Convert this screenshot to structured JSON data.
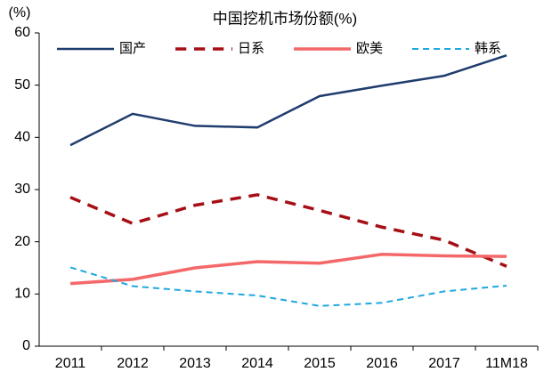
{
  "chart_data": {
    "type": "line",
    "title": "中国挖机市场份额(%)",
    "y_unit": "(%)",
    "categories": [
      "2011",
      "2012",
      "2013",
      "2014",
      "2015",
      "2016",
      "2017",
      "11M18"
    ],
    "series": [
      {
        "name": "国产",
        "color": "#1f3c6e",
        "dash": false,
        "width": 2.5,
        "values": [
          38.5,
          44.5,
          42.2,
          41.9,
          47.9,
          49.9,
          51.8,
          55.7
        ]
      },
      {
        "name": "日系",
        "color": "#a50f15",
        "dash": true,
        "width": 3.5,
        "values": [
          28.5,
          23.5,
          27,
          29,
          26,
          22.8,
          20.3,
          15.3
        ]
      },
      {
        "name": "欧美",
        "color": "#f4686a",
        "dash": false,
        "width": 3.5,
        "values": [
          12,
          12.8,
          15,
          16.2,
          15.9,
          17.6,
          17.3,
          17.2
        ]
      },
      {
        "name": "韩系",
        "color": "#1fa8e0",
        "dash": true,
        "width": 2,
        "values": [
          15.1,
          11.5,
          10.5,
          9.7,
          7.7,
          8.3,
          10.5,
          11.6
        ]
      }
    ],
    "ylim": [
      0,
      60
    ],
    "yticks": [
      0,
      10,
      20,
      30,
      40,
      50,
      60
    ],
    "grid": false,
    "legend": "top"
  }
}
